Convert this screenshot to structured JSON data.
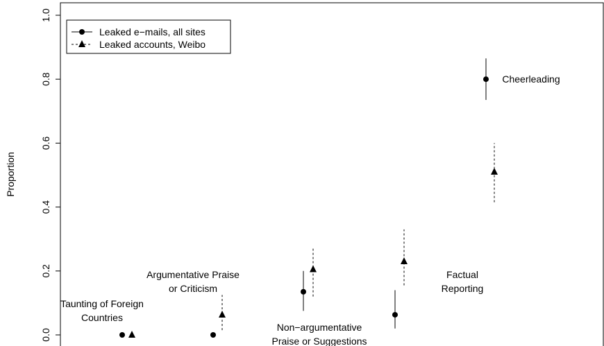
{
  "chart_data": {
    "type": "scatter",
    "title": "",
    "xlabel": "",
    "ylabel": "Proportion",
    "ylim": [
      0,
      1
    ],
    "yticks": [
      "0.0",
      "0.2",
      "0.4",
      "0.6",
      "0.8",
      "1.0"
    ],
    "grid": false,
    "legend_position": "top-left",
    "categories": [
      [
        "Taunting of Foreign",
        "Countries"
      ],
      [
        "Argumentative Praise",
        "or Criticism"
      ],
      [
        "Non−argumentative",
        "Praise or Suggestions"
      ],
      [
        "Factual",
        "Reporting"
      ],
      [
        "Cheerleading"
      ]
    ],
    "series": [
      {
        "name": "Leaked e−mails, all sites",
        "marker": "circle",
        "line": "solid",
        "values": [
          0.0,
          0.0,
          0.135,
          0.063,
          0.8
        ],
        "ci_low": [
          null,
          null,
          0.075,
          0.02,
          0.735
        ],
        "ci_high": [
          null,
          null,
          0.2,
          0.14,
          0.865
        ]
      },
      {
        "name": "Leaked accounts, Weibo",
        "marker": "triangle",
        "line": "dashed",
        "values": [
          0.0,
          0.063,
          0.205,
          0.23,
          0.51
        ],
        "ci_low": [
          null,
          0.015,
          0.12,
          0.155,
          0.415
        ],
        "ci_high": [
          null,
          0.125,
          0.27,
          0.33,
          0.6
        ]
      }
    ]
  }
}
